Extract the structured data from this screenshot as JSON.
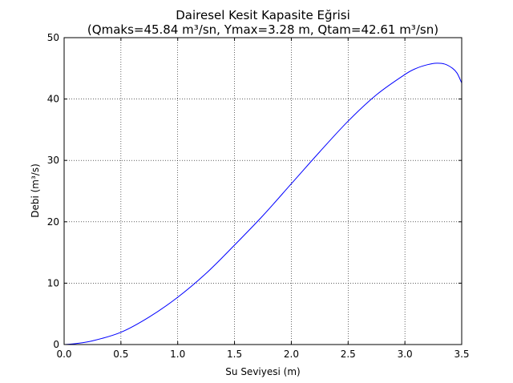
{
  "chart_data": {
    "type": "line",
    "title": "Dairesel Kesit Kapasite Eğrisi",
    "subtitle": "(Qmaks=45.84 m³/sn, Ymax=3.28 m, Qtam=42.61 m³/sn)",
    "xlabel": "Su Seviyesi (m)",
    "ylabel": "Debi (m³/s)",
    "xlim": [
      0.0,
      3.5
    ],
    "ylim": [
      0,
      50
    ],
    "xticks": [
      "0.0",
      "0.5",
      "1.0",
      "1.5",
      "2.0",
      "2.5",
      "3.0",
      "3.5"
    ],
    "yticks": [
      "0",
      "10",
      "20",
      "30",
      "40",
      "50"
    ],
    "grid": true,
    "line_color": "#0000ff",
    "series": [
      {
        "x": [
          0.0,
          0.1,
          0.25,
          0.5,
          0.75,
          1.0,
          1.25,
          1.5,
          1.75,
          2.0,
          2.25,
          2.5,
          2.75,
          3.0,
          3.1,
          3.2,
          3.28,
          3.35,
          3.42,
          3.46,
          3.5
        ],
        "values": [
          0.0,
          0.15,
          0.6,
          2.0,
          4.5,
          7.7,
          11.6,
          16.2,
          21.0,
          26.2,
          31.4,
          36.4,
          40.7,
          44.0,
          45.0,
          45.6,
          45.84,
          45.7,
          45.0,
          44.2,
          42.61
        ]
      }
    ]
  }
}
